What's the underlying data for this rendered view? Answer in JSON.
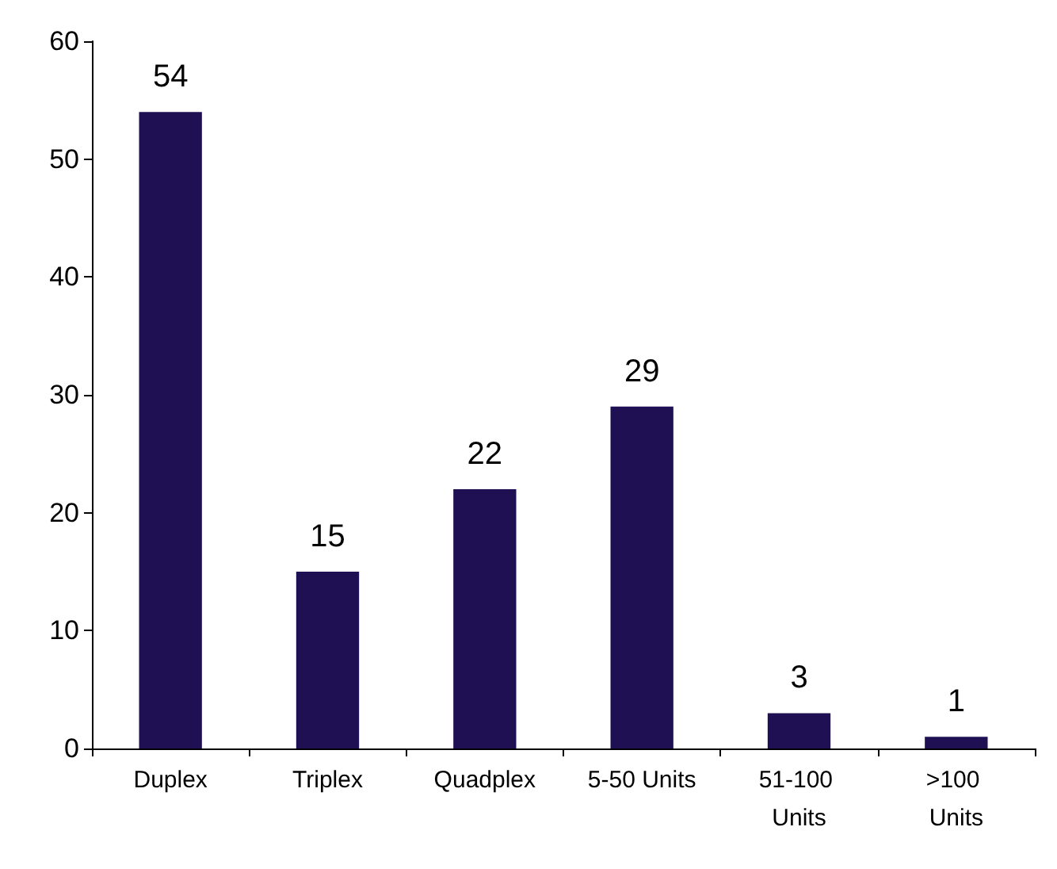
{
  "chart_data": {
    "type": "bar",
    "categories": [
      "Duplex",
      "Triplex",
      "Quadplex",
      "5-50 Units",
      "51-100 Units",
      ">100 Units"
    ],
    "values": [
      54,
      15,
      22,
      29,
      3,
      1
    ],
    "color": "#1f1054",
    "ylim": [
      0,
      60
    ],
    "yticks": [
      0,
      10,
      20,
      30,
      40,
      50,
      60
    ],
    "grid": false,
    "data_labels": true
  }
}
